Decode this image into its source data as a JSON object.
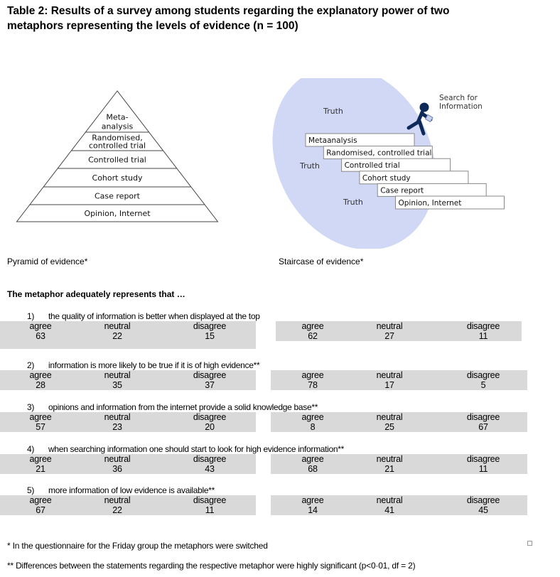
{
  "title": "Table 2: Results of a survey among students regarding the explanatory power of two metaphors representing the levels of evidence (n = 100)",
  "pyramid": {
    "caption": "Pyramid of evidence*",
    "levels": [
      "Meta-\nanalysis",
      "Randomised,\ncontrolled trial",
      "Controlled trial",
      "Cohort study",
      "Case report",
      "Opinion, Internet"
    ]
  },
  "staircase": {
    "caption": "Staircase of evidence*",
    "search_label": "Search for\nInformation",
    "truth_label": "Truth",
    "steps": [
      "Metaanalysis",
      "Randomised, controlled trial",
      "Controlled trial",
      "Cohort study",
      "Case report",
      "Opinion, Internet"
    ],
    "ellipse_color": "#d0d8f5",
    "figure_color": "#0e2a5a"
  },
  "subtitle": "The metaphor adequately represents that …",
  "columns": [
    "agree",
    "neutral",
    "disagree"
  ],
  "statements": [
    {
      "num": "1)",
      "text": "the quality of information is better when displayed at the top",
      "pyramid": [
        "63",
        "22",
        "15"
      ],
      "staircase": [
        "62",
        "27",
        "11"
      ]
    },
    {
      "num": "2)",
      "text": "information is more likely to be true if it is  of high evidence**",
      "pyramid": [
        "28",
        "35",
        "37"
      ],
      "staircase": [
        "78",
        "17",
        "5"
      ]
    },
    {
      "num": "3)",
      "text": "opinions and information from the internet provide a solid knowledge base**",
      "pyramid": [
        "57",
        "23",
        "20"
      ],
      "staircase": [
        "8",
        "25",
        "67"
      ]
    },
    {
      "num": "4)",
      "text": "when searching information one should start to look for high evidence information**",
      "pyramid": [
        "21",
        "36",
        "43"
      ],
      "staircase": [
        "68",
        "21",
        "11"
      ]
    },
    {
      "num": "5)",
      "text": "more information of low evidence is available**",
      "pyramid": [
        "67",
        "22",
        "11"
      ],
      "staircase": [
        "14",
        "41",
        "45"
      ]
    }
  ],
  "footnotes": [
    "* In the questionnaire for the Friday group the metaphors were switched",
    "** Differences between the statements regarding the respective metaphor were highly significant (p<0·01, df = 2)"
  ],
  "colors": {
    "table_fill": "#d9d9d9"
  }
}
